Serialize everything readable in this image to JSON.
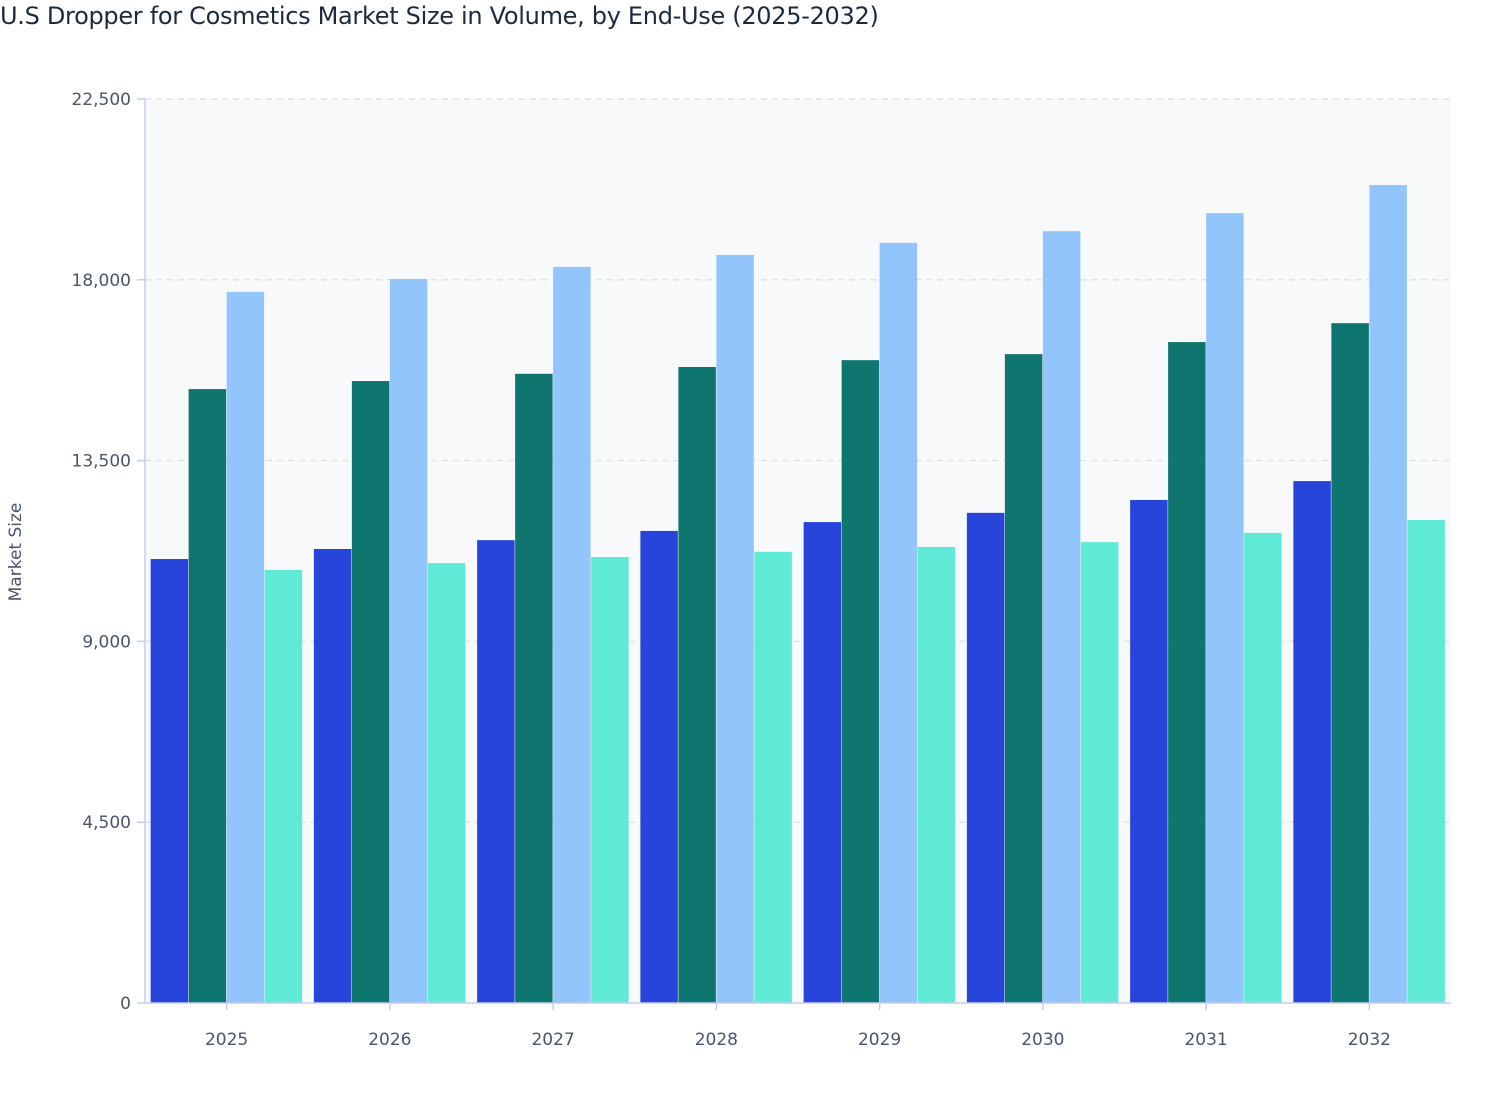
{
  "chart_data": {
    "type": "bar",
    "title": "U.S Dropper for Cosmetics Market Size in Volume, by End-Use (2025-2032)",
    "xlabel": "",
    "ylabel": "Market Size",
    "ylim": [
      0,
      22500
    ],
    "yticks": [
      0,
      4500,
      9000,
      13500,
      18000,
      22500
    ],
    "ytick_labels": [
      "0",
      "4,500",
      "9,000",
      "13,500",
      "18,000",
      "22,500"
    ],
    "grid": true,
    "legend": "none",
    "categories": [
      "2025",
      "2026",
      "2027",
      "2028",
      "2029",
      "2030",
      "2031",
      "2032"
    ],
    "series": [
      {
        "color": "#2845db",
        "values": [
          11050,
          11300,
          11520,
          11750,
          11970,
          12200,
          12520,
          12990
        ]
      },
      {
        "color": "#0e766e",
        "values": [
          15280,
          15480,
          15660,
          15830,
          16000,
          16150,
          16450,
          16920
        ]
      },
      {
        "color": "#93c5fd",
        "values": [
          17700,
          18020,
          18320,
          18620,
          18920,
          19210,
          19660,
          20360
        ]
      },
      {
        "color": "#5eead4",
        "values": [
          10780,
          10950,
          11100,
          11230,
          11350,
          11470,
          11700,
          12020
        ]
      }
    ]
  }
}
